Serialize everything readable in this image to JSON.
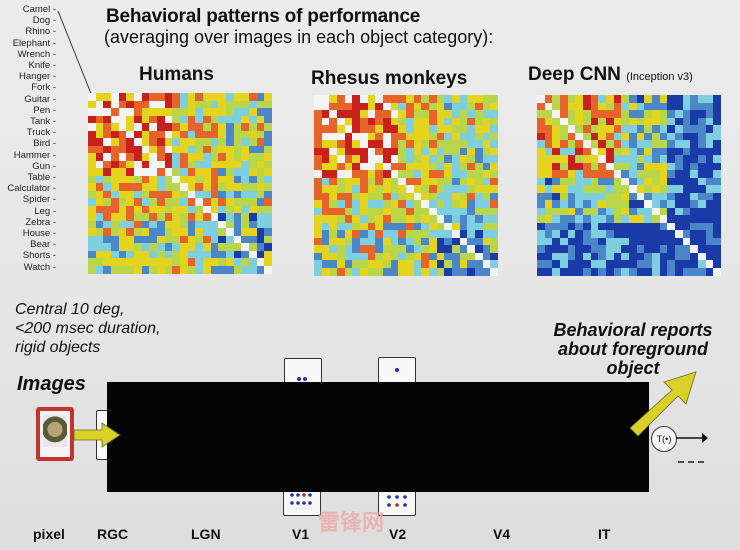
{
  "header": {
    "title": "Behavioral patterns of performance",
    "subtitle": "(averaging over images in each object category):"
  },
  "categories": [
    "Camel",
    "Dog",
    "Rhino",
    "Elephant",
    "Wrench",
    "Knife",
    "Hanger",
    "Fork",
    "Guitar",
    "Pen",
    "Tank",
    "Truck",
    "Bird",
    "Hammer",
    "Gun",
    "Table",
    "Calculator",
    "Spider",
    "Leg",
    "Zebra",
    "House",
    "Bear",
    "Shorts",
    "Watch"
  ],
  "matrices": [
    {
      "label": "Humans",
      "note": ""
    },
    {
      "label": "Rhesus monkeys",
      "note": ""
    },
    {
      "label": "Deep CNN",
      "note": "(Inception v3)"
    }
  ],
  "conditions": {
    "line1": "Central 10 deg,",
    "line2": "<200 msec duration,",
    "line3": "rigid objects"
  },
  "behavioral": {
    "line1": "Behavioral reports",
    "line2": "about foreground",
    "line3": "object"
  },
  "images_label": "Images",
  "output_label": "T(•)",
  "stages": [
    "pixel",
    "RGC",
    "LGN",
    "V1",
    "V2",
    "V4",
    "IT"
  ],
  "watermark": "雷锋网",
  "colors": {
    "arrow": "#d9d028",
    "heat_red": "#c8201a",
    "heat_yellow": "#e4d41e",
    "heat_cyan": "#7ecfe0",
    "heat_blue": "#1a3aa8"
  }
}
